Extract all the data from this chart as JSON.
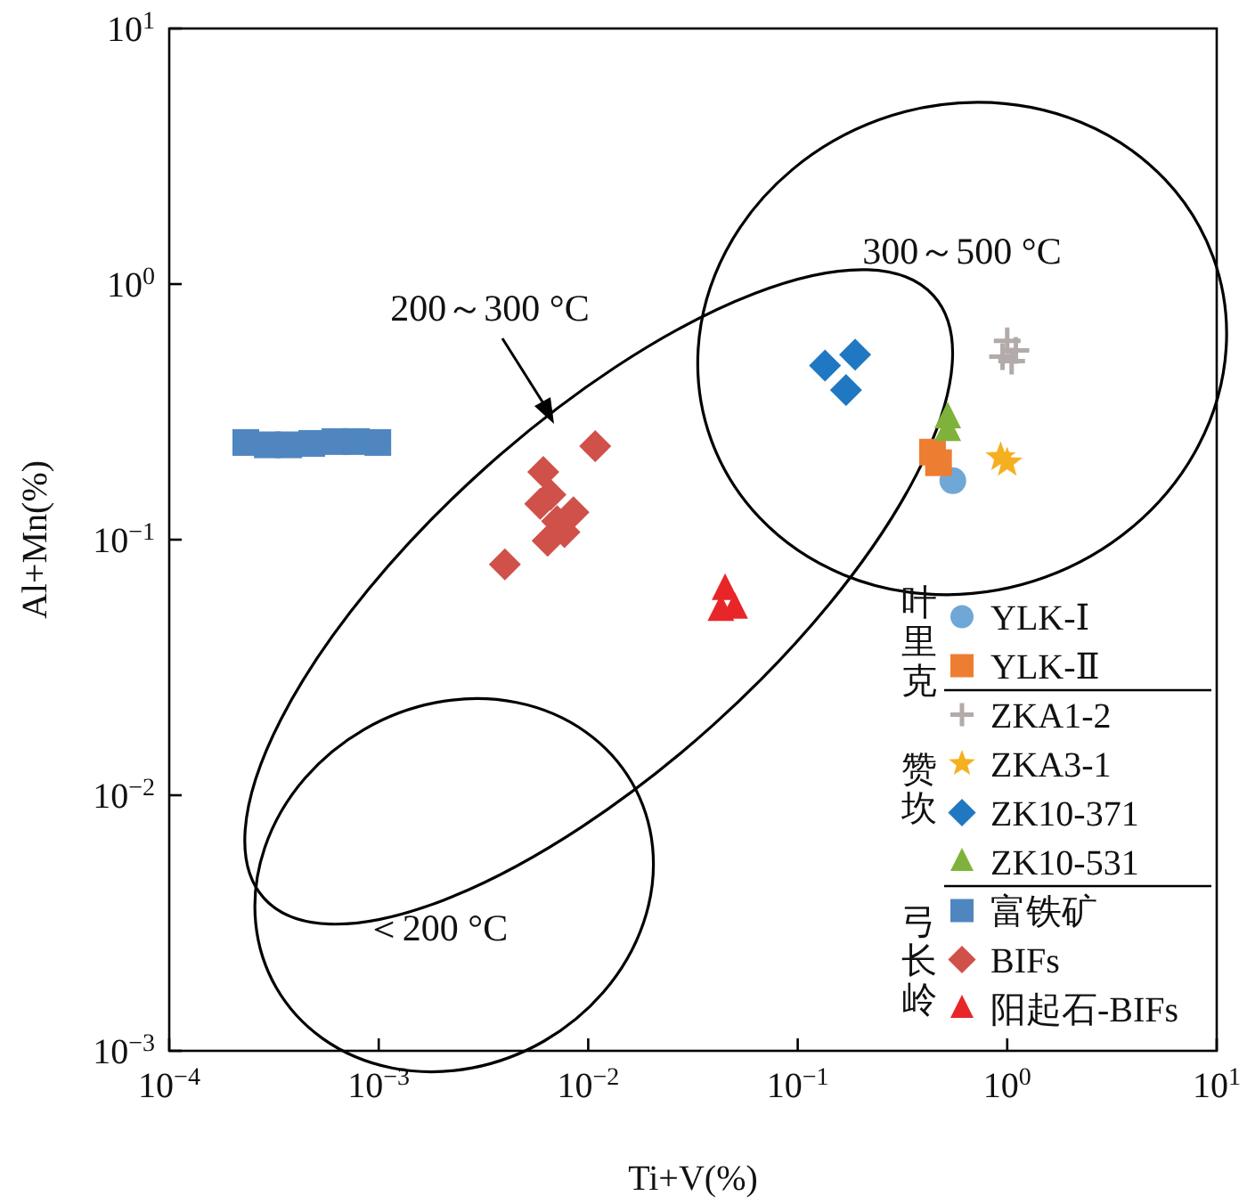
{
  "chart_data": {
    "type": "scatter",
    "xlabel": "Ti+V(%)",
    "ylabel": "Al+Mn(%)",
    "log": "xy",
    "xlim": [
      0.0001,
      10
    ],
    "ylim": [
      0.001,
      10
    ],
    "xticks": [
      {
        "value": 0.0001,
        "label": "10$^{−4}$"
      },
      {
        "value": 0.001,
        "label": "10$^{−3}$"
      },
      {
        "value": 0.01,
        "label": "10$^{−2}$"
      },
      {
        "value": 0.1,
        "label": "10$^{−1}$"
      },
      {
        "value": 1,
        "label": "10$^{0}$"
      },
      {
        "value": 10,
        "label": "10$^{1}$"
      }
    ],
    "yticks": [
      {
        "value": 0.001,
        "label": "10$^{−3}$"
      },
      {
        "value": 0.01,
        "label": "10$^{−2}$"
      },
      {
        "value": 0.1,
        "label": "10$^{−1}$"
      },
      {
        "value": 1,
        "label": "10$^{0}$"
      },
      {
        "value": 10,
        "label": "10$^{1}$"
      }
    ],
    "legend": "bottom right",
    "annotations": [
      "300～500 °C",
      "200～300 °C",
      "＜200 °C",
      "叶里克",
      "赞坎",
      "弓长岭"
    ],
    "series": [
      {
        "name": "YLK-Ⅰ",
        "color": "#6fa8d6",
        "marker": "circle",
        "x": [
          0.55
        ],
        "values": [
          0.17
        ]
      },
      {
        "name": "YLK-Ⅱ",
        "color": "#ed7d31",
        "marker": "square",
        "x": [
          0.44,
          0.47
        ],
        "values": [
          0.22,
          0.2
        ]
      },
      {
        "name": "ZKA1-2",
        "color": "#b3aaaa",
        "marker": "cross",
        "x": [
          1.0,
          1.1,
          0.95,
          1.05
        ],
        "values": [
          0.6,
          0.55,
          0.52,
          0.5
        ]
      },
      {
        "name": "ZKA3-1",
        "color": "#f5b020",
        "marker": "star",
        "x": [
          0.93,
          1.0
        ],
        "values": [
          0.21,
          0.2
        ]
      },
      {
        "name": "ZK10-371",
        "color": "#1f78c1",
        "marker": "diamond",
        "x": [
          0.135,
          0.188,
          0.17
        ],
        "values": [
          0.48,
          0.53,
          0.385
        ]
      },
      {
        "name": "ZK10-531",
        "color": "#7fb23a",
        "marker": "triangle",
        "x": [
          0.52,
          0.52
        ],
        "values": [
          0.3,
          0.268
        ]
      },
      {
        "name": "富铁矿",
        "color": "#4f86c0",
        "marker": "square",
        "x": [
          0.000232,
          0.000294,
          0.000372,
          0.000479,
          0.000618,
          0.000782,
          0.00099
        ],
        "values": [
          0.24,
          0.235,
          0.235,
          0.238,
          0.242,
          0.242,
          0.24
        ]
      },
      {
        "name": "BIFs",
        "color": "#d0504a",
        "marker": "diamond",
        "x": [
          0.0108,
          0.0061,
          0.0066,
          0.0059,
          0.0085,
          0.0071,
          0.0077,
          0.0064,
          0.004
        ],
        "values": [
          0.232,
          0.184,
          0.15,
          0.138,
          0.128,
          0.118,
          0.107,
          0.099,
          0.08
        ]
      },
      {
        "name": "阳起石-BIFs",
        "color": "#e8262a",
        "marker": "triangle",
        "x": [
          0.045,
          0.043,
          0.05
        ],
        "values": [
          0.064,
          0.053,
          0.054
        ]
      }
    ]
  }
}
